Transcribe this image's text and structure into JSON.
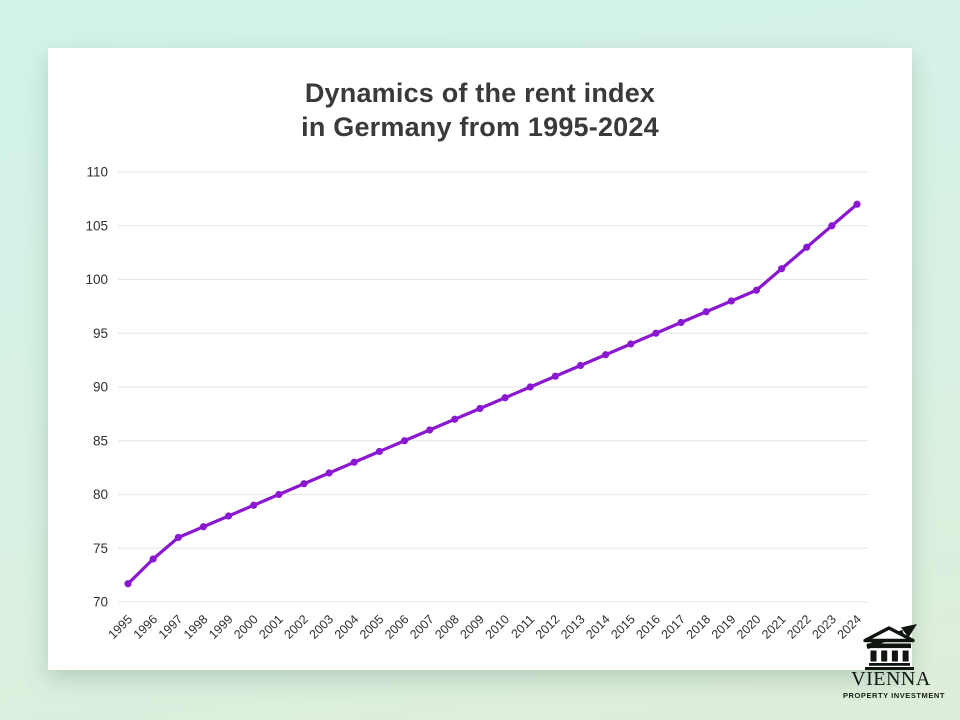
{
  "title": {
    "line1": "Dynamics of the rent index",
    "line2": "in Germany from 1995-2024"
  },
  "chart_data": {
    "type": "line",
    "title": "Dynamics of the rent index in Germany from 1995-2024",
    "x": [
      1995,
      1996,
      1997,
      1998,
      1999,
      2000,
      2001,
      2002,
      2003,
      2004,
      2005,
      2006,
      2007,
      2008,
      2009,
      2010,
      2011,
      2012,
      2013,
      2014,
      2015,
      2016,
      2017,
      2018,
      2019,
      2020,
      2021,
      2022,
      2023,
      2024
    ],
    "series": [
      {
        "name": "Rent index",
        "color": "#8a18d0",
        "values": [
          71.7,
          74,
          76,
          77,
          78,
          79,
          80,
          81,
          82,
          83,
          84,
          85,
          86,
          87,
          88,
          89,
          90,
          91,
          92,
          93,
          94,
          95,
          96,
          97,
          98,
          99,
          101,
          103,
          105,
          107
        ]
      }
    ],
    "xlabel": "",
    "ylabel": "",
    "ylim": [
      70,
      110
    ],
    "yticks": [
      70,
      75,
      80,
      85,
      90,
      95,
      100,
      105,
      110
    ],
    "grid": "horizontal",
    "legend": "none",
    "marker": "circle"
  },
  "logo": {
    "name": "VIENNA",
    "tagline": "PROPERTY INVESTMENT",
    "icon": "bank-building-with-growth-arrow"
  },
  "colors": {
    "background_top": "#d3f4ea",
    "background_bottom": "#dfeeda",
    "panel": "#ffffff",
    "line": "#8a18d0",
    "grid": "#e9e9e9",
    "text": "#2f2f2f",
    "title_text": "#3a3a3a"
  }
}
